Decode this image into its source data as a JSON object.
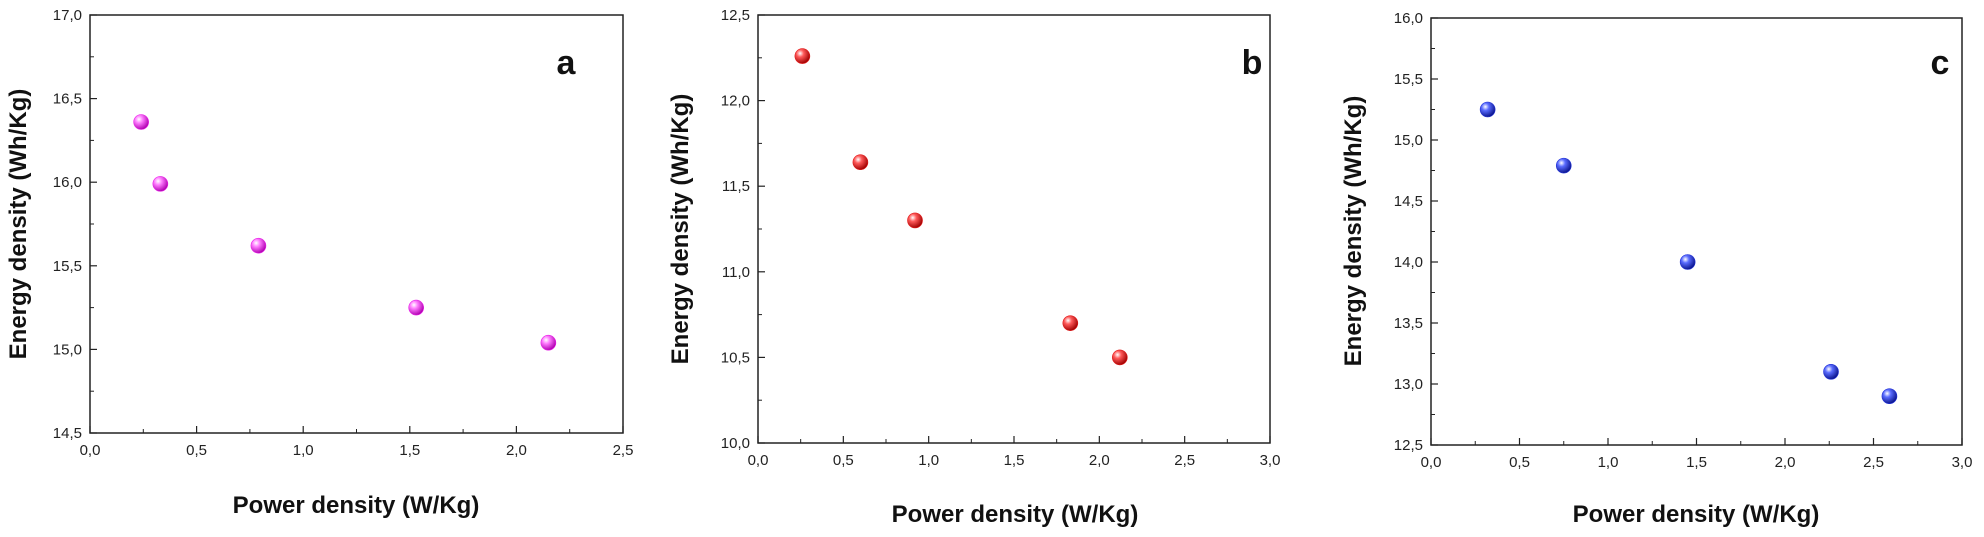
{
  "chart_data": [
    {
      "type": "scatter",
      "panel_label": "a",
      "xlabel": "Power density (W/Kg)",
      "ylabel": "Energy density (Wh/Kg)",
      "xlim": [
        0,
        2.5
      ],
      "ylim": [
        14.5,
        17.0
      ],
      "xticks": [
        "0,0",
        "0,5",
        "1,0",
        "1,5",
        "2,0",
        "2,5"
      ],
      "yticks": [
        "14,5",
        "15,0",
        "15,5",
        "16,0",
        "16,5",
        "17,0"
      ],
      "grid": false,
      "color": "#e81fe8",
      "x": [
        0.24,
        0.33,
        0.79,
        1.53,
        2.15
      ],
      "y": [
        16.36,
        15.99,
        15.62,
        15.25,
        15.04
      ]
    },
    {
      "type": "scatter",
      "panel_label": "b",
      "xlabel": "Power density (W/Kg)",
      "ylabel": "Energy density (Wh/Kg)",
      "xlim": [
        0,
        3.0
      ],
      "ylim": [
        10.0,
        12.5
      ],
      "xticks": [
        "0,0",
        "0,5",
        "1,0",
        "1,5",
        "2,0",
        "2,5",
        "3,0"
      ],
      "yticks": [
        "10,0",
        "10,5",
        "11,0",
        "11,5",
        "12,0",
        "12,5"
      ],
      "grid": false,
      "color": "#e31a1a",
      "x": [
        0.26,
        0.6,
        0.92,
        1.83,
        2.12
      ],
      "y": [
        12.26,
        11.64,
        11.3,
        10.7,
        10.5
      ]
    },
    {
      "type": "scatter",
      "panel_label": "c",
      "xlabel": "Power density (W/Kg)",
      "ylabel": "Energy density (Wh/Kg)",
      "xlim": [
        0,
        3.0
      ],
      "ylim": [
        12.5,
        16.0
      ],
      "xticks": [
        "0,0",
        "0,5",
        "1,0",
        "1,5",
        "2,0",
        "2,5",
        "3,0"
      ],
      "yticks": [
        "12,5",
        "13,0",
        "13,5",
        "14,0",
        "14,5",
        "15,0",
        "15,5",
        "16,0"
      ],
      "grid": false,
      "color": "#2030d8",
      "x": [
        0.32,
        0.75,
        1.45,
        2.26,
        2.59
      ],
      "y": [
        15.25,
        14.79,
        14.0,
        13.1,
        12.9
      ]
    }
  ]
}
